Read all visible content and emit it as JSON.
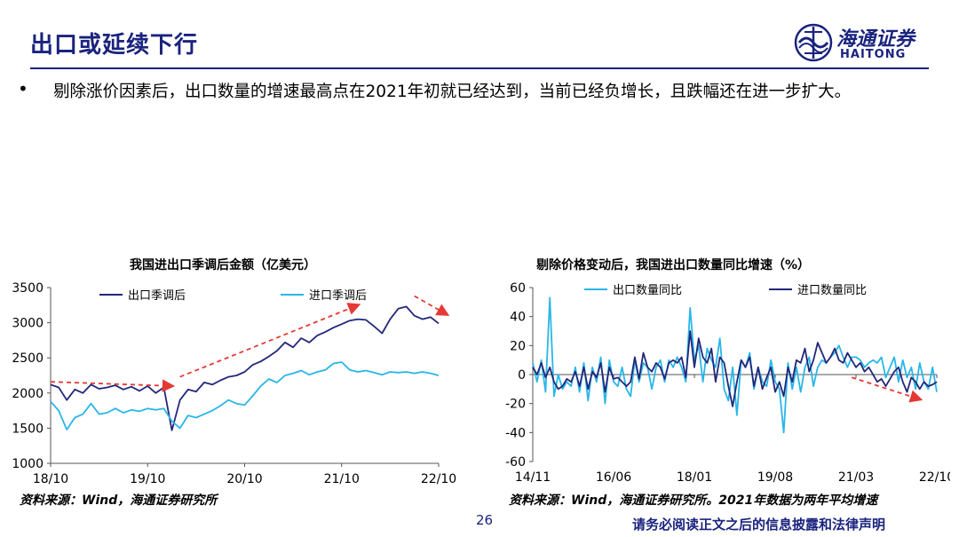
{
  "header": {
    "title": "出口或延续下行",
    "bullet": "•",
    "lead": "剔除涨价因素后，出口数量的增速最高点在2021年初就已经达到，当前已经负增长，且跌幅还在进一步扩大。"
  },
  "logo": {
    "name_cn": "海通证券",
    "name_en": "HAITONG"
  },
  "colors": {
    "navy": "#1a237e",
    "dark_line": "#22277a",
    "light_line": "#29b6e8",
    "arrow": "#e53935"
  },
  "chart_data": [
    {
      "type": "line",
      "title": "我国进出口季调后金额（亿美元）",
      "xlabel": "",
      "ylabel": "",
      "x_ticks": [
        "18/10",
        "19/10",
        "20/10",
        "21/10",
        "22/10"
      ],
      "x_range": [
        0,
        48
      ],
      "ylim": [
        1000,
        3500
      ],
      "y_ticks": [
        1000,
        1500,
        2000,
        2500,
        3000,
        3500
      ],
      "grid": false,
      "legend": "top-left",
      "series": [
        {
          "name": "出口季调后",
          "color": "#22277a",
          "x": [
            0,
            1,
            2,
            3,
            4,
            5,
            6,
            7,
            8,
            9,
            10,
            11,
            12,
            13,
            14,
            15,
            16,
            17,
            18,
            19,
            20,
            21,
            22,
            23,
            24,
            25,
            26,
            27,
            28,
            29,
            30,
            31,
            32,
            33,
            34,
            35,
            36,
            37,
            38,
            39,
            40,
            41,
            42,
            43,
            44,
            45,
            46,
            47,
            48
          ],
          "values": [
            2120,
            2080,
            1900,
            2050,
            2000,
            2120,
            2060,
            2080,
            2110,
            2050,
            2090,
            2030,
            2100,
            2000,
            2080,
            1470,
            1900,
            2050,
            2020,
            2150,
            2120,
            2180,
            2230,
            2250,
            2300,
            2400,
            2450,
            2520,
            2600,
            2720,
            2650,
            2780,
            2720,
            2820,
            2870,
            2930,
            2980,
            3030,
            3050,
            3040,
            2950,
            2850,
            3050,
            3200,
            3230,
            3100,
            3050,
            3080,
            2990
          ]
        },
        {
          "name": "进口季调后",
          "color": "#29b6e8",
          "x": [
            0,
            1,
            2,
            3,
            4,
            5,
            6,
            7,
            8,
            9,
            10,
            11,
            12,
            13,
            14,
            15,
            16,
            17,
            18,
            19,
            20,
            21,
            22,
            23,
            24,
            25,
            26,
            27,
            28,
            29,
            30,
            31,
            32,
            33,
            34,
            35,
            36,
            37,
            38,
            39,
            40,
            41,
            42,
            43,
            44,
            45,
            46,
            47,
            48
          ],
          "values": [
            1880,
            1750,
            1480,
            1650,
            1700,
            1850,
            1700,
            1720,
            1780,
            1720,
            1760,
            1740,
            1780,
            1760,
            1780,
            1600,
            1500,
            1680,
            1650,
            1700,
            1750,
            1820,
            1900,
            1850,
            1830,
            1960,
            2100,
            2200,
            2150,
            2250,
            2280,
            2320,
            2260,
            2300,
            2330,
            2420,
            2440,
            2330,
            2300,
            2320,
            2290,
            2260,
            2300,
            2290,
            2300,
            2280,
            2300,
            2280,
            2250
          ]
        }
      ],
      "annotations": [
        {
          "type": "arrow",
          "color": "#e53935",
          "x1": 0,
          "y1": 2160,
          "x2": 15,
          "y2": 2100
        },
        {
          "type": "arrow",
          "color": "#e53935",
          "x1": 16,
          "y1": 2230,
          "x2": 38,
          "y2": 3250
        },
        {
          "type": "arrow",
          "color": "#e53935",
          "x1": 45,
          "y1": 3380,
          "x2": 49,
          "y2": 3120
        }
      ],
      "source": "资料来源：Wind，海通证券研究所"
    },
    {
      "type": "line",
      "title": "剔除价格变动后，我国进出口数量同比增速（%）",
      "xlabel": "",
      "ylabel": "",
      "x_ticks": [
        "14/11",
        "16/06",
        "18/01",
        "19/08",
        "21/03",
        "22/10"
      ],
      "x_range": [
        0,
        95
      ],
      "ylim": [
        -60,
        60
      ],
      "y_ticks": [
        -60,
        -40,
        -20,
        0,
        20,
        40,
        60
      ],
      "grid": false,
      "legend": "top",
      "series": [
        {
          "name": "出口数量同比",
          "color": "#29b6e8",
          "x": [
            0,
            1,
            2,
            3,
            4,
            5,
            6,
            7,
            8,
            9,
            10,
            11,
            12,
            13,
            14,
            15,
            16,
            17,
            18,
            19,
            20,
            21,
            22,
            23,
            24,
            25,
            26,
            27,
            28,
            29,
            30,
            31,
            32,
            33,
            34,
            35,
            36,
            37,
            38,
            39,
            40,
            41,
            42,
            43,
            44,
            45,
            46,
            47,
            48,
            49,
            50,
            51,
            52,
            53,
            54,
            55,
            56,
            57,
            58,
            59,
            60,
            61,
            62,
            63,
            64,
            65,
            66,
            67,
            68,
            69,
            70,
            71,
            72,
            73,
            74,
            75,
            76,
            77,
            78,
            79,
            80,
            81,
            82,
            83,
            84,
            85,
            86,
            87,
            88,
            89,
            90,
            91,
            92,
            93,
            94,
            95
          ],
          "values": [
            8,
            -5,
            10,
            -12,
            53,
            -15,
            0,
            -10,
            -5,
            -8,
            5,
            -12,
            8,
            -18,
            5,
            -5,
            12,
            -20,
            10,
            -5,
            -8,
            5,
            -10,
            -15,
            10,
            -5,
            8,
            5,
            -10,
            5,
            10,
            -5,
            10,
            5,
            12,
            5,
            -5,
            46,
            10,
            20,
            -5,
            18,
            10,
            5,
            25,
            -10,
            -18,
            5,
            -28,
            10,
            5,
            15,
            -10,
            5,
            -5,
            -8,
            10,
            -5,
            -10,
            -40,
            8,
            -10,
            5,
            -12,
            5,
            12,
            -8,
            5,
            10,
            8,
            12,
            15,
            20,
            12,
            5,
            12,
            12,
            10,
            5,
            8,
            10,
            8,
            12,
            -2,
            5,
            12,
            -5,
            10,
            -2,
            5,
            -10,
            8,
            -5,
            -10,
            5,
            -12
          ]
        },
        {
          "name": "进口数量同比",
          "color": "#22277a",
          "x": [
            0,
            1,
            2,
            3,
            4,
            5,
            6,
            7,
            8,
            9,
            10,
            11,
            12,
            13,
            14,
            15,
            16,
            17,
            18,
            19,
            20,
            21,
            22,
            23,
            24,
            25,
            26,
            27,
            28,
            29,
            30,
            31,
            32,
            33,
            34,
            35,
            36,
            37,
            38,
            39,
            40,
            41,
            42,
            43,
            44,
            45,
            46,
            47,
            48,
            49,
            50,
            51,
            52,
            53,
            54,
            55,
            56,
            57,
            58,
            59,
            60,
            61,
            62,
            63,
            64,
            65,
            66,
            67,
            68,
            69,
            70,
            71,
            72,
            73,
            74,
            75,
            76,
            77,
            78,
            79,
            80,
            81,
            82,
            83,
            84,
            85,
            86,
            87,
            88,
            89,
            90,
            91,
            92,
            93,
            94,
            95
          ],
          "values": [
            5,
            0,
            8,
            -2,
            5,
            -5,
            -10,
            -8,
            -3,
            -5,
            2,
            -8,
            5,
            -10,
            2,
            -2,
            8,
            -12,
            5,
            -3,
            -2,
            -5,
            -8,
            -5,
            12,
            -3,
            15,
            5,
            2,
            8,
            5,
            -3,
            8,
            10,
            8,
            12,
            -2,
            30,
            5,
            25,
            12,
            8,
            18,
            -5,
            12,
            8,
            -8,
            -22,
            -5,
            10,
            5,
            12,
            -8,
            5,
            -10,
            -2,
            5,
            -12,
            -5,
            -15,
            5,
            -5,
            10,
            8,
            18,
            2,
            10,
            22,
            15,
            8,
            12,
            18,
            10,
            8,
            15,
            10,
            5,
            8,
            2,
            5,
            0,
            -5,
            -3,
            -8,
            -3,
            2,
            5,
            -5,
            -12,
            -2,
            -5,
            -10,
            -5,
            -8,
            -7,
            -5
          ]
        }
      ],
      "annotations": [
        {
          "type": "arrow",
          "color": "#e53935",
          "x1": 75,
          "y1": -2,
          "x2": 91,
          "y2": -17
        }
      ],
      "source": "资料来源：Wind，海通证券研究所。2021年数据为两年平均增速"
    }
  ],
  "footer": {
    "page": "26",
    "disclaimer": "请务必阅读正文之后的信息披露和法律声明"
  }
}
